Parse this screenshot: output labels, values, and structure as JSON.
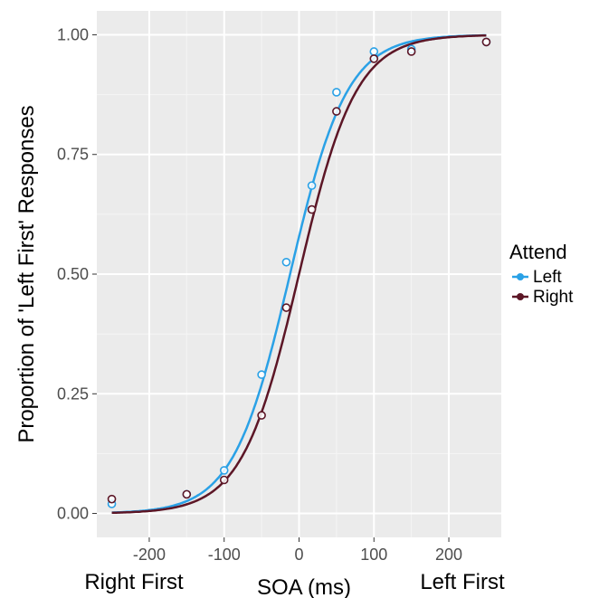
{
  "chart_data": {
    "type": "scatter",
    "title": "",
    "xlabel": "SOA (ms)",
    "ylabel": "Proportion of 'Left First' Responses",
    "xlim": [
      -270,
      270
    ],
    "ylim": [
      -0.05,
      1.05
    ],
    "x_ticks": [
      -200,
      -100,
      0,
      100,
      200
    ],
    "x_tick_labels": [
      "-200",
      "-100",
      "0",
      "100",
      "200"
    ],
    "y_ticks": [
      0,
      0.25,
      0.5,
      0.75,
      1
    ],
    "y_tick_labels": [
      "0.00",
      "0.25",
      "0.50",
      "0.75",
      "1.00"
    ],
    "x_end_labels": {
      "left": "Right First",
      "right": "Left First"
    },
    "grid": true,
    "legend": {
      "title": "Attend",
      "position": "right"
    },
    "series": [
      {
        "name": "Left",
        "color": "#2aa1e6",
        "x": [
          -250,
          -150,
          -100,
          -50,
          -17,
          17,
          50,
          100,
          150,
          250
        ],
        "y": [
          0.02,
          0.04,
          0.09,
          0.29,
          0.525,
          0.685,
          0.88,
          0.965,
          0.97,
          0.985
        ],
        "fit": {
          "pse": -12,
          "slope": 38
        }
      },
      {
        "name": "Right",
        "color": "#5c1626",
        "x": [
          -250,
          -150,
          -100,
          -50,
          -17,
          17,
          50,
          100,
          150,
          250
        ],
        "y": [
          0.03,
          0.04,
          0.07,
          0.205,
          0.43,
          0.635,
          0.84,
          0.95,
          0.965,
          0.985
        ],
        "fit": {
          "pse": 0,
          "slope": 38
        }
      }
    ]
  }
}
